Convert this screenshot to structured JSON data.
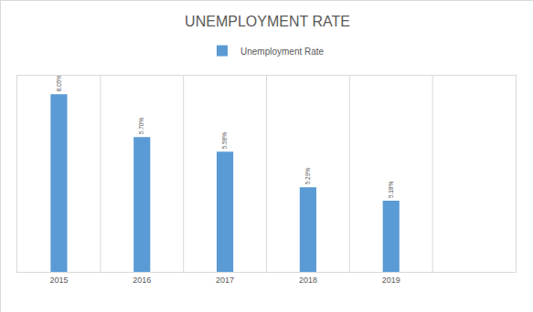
{
  "chart_data": {
    "type": "bar",
    "title": "UNEMPLOYMENT RATE",
    "categories": [
      "2015",
      "2016",
      "2017",
      "2018",
      "2019",
      null
    ],
    "series": [
      {
        "name": "Unemployment Rate",
        "color": "#5b9bd5",
        "values": [
          6.05,
          5.7,
          5.58,
          5.29,
          5.18,
          null
        ],
        "value_labels": [
          "6.05%",
          "5.70%",
          "5.58%",
          "5.29%",
          "5.18%",
          null
        ]
      }
    ],
    "ylim": [
      4.6,
      6.2
    ],
    "grid": true,
    "legend": "top",
    "data_labels": true,
    "tick_labels": "x"
  }
}
